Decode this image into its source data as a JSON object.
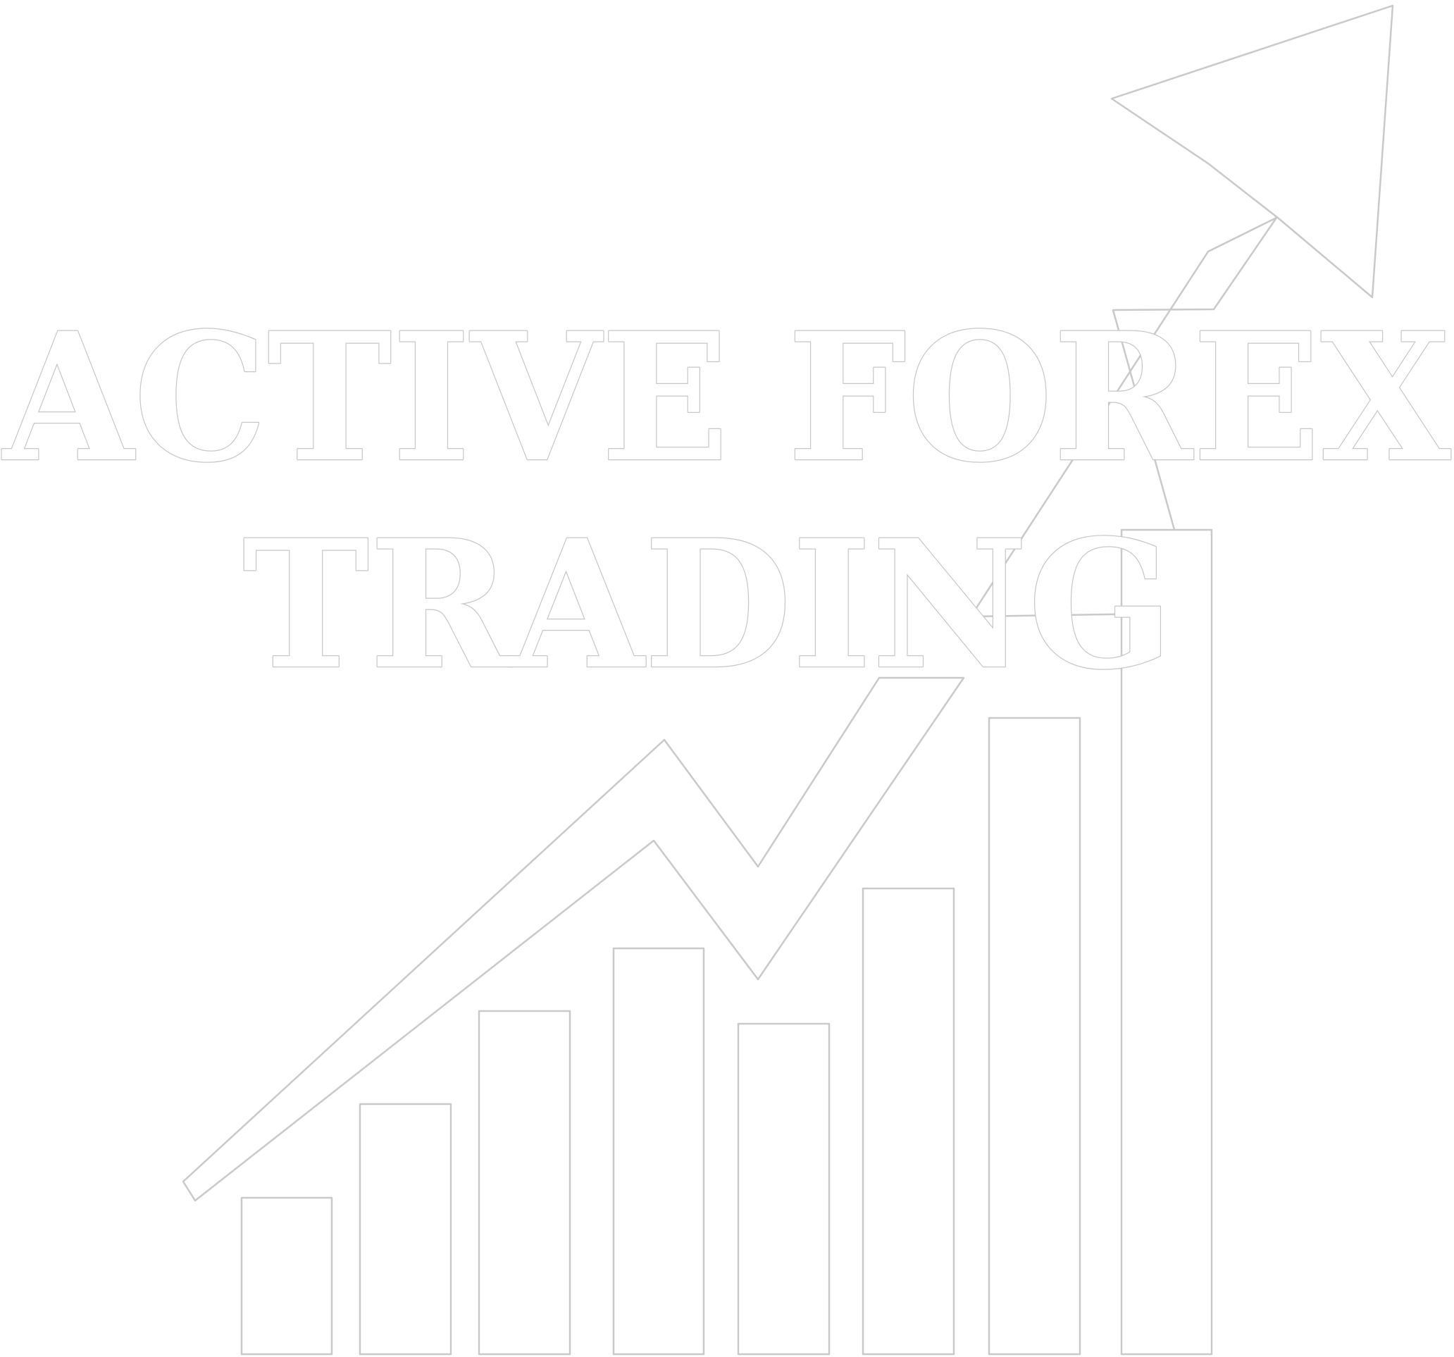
{
  "logo": {
    "line1": "ACTIVE FOREX",
    "line2": "TRADING",
    "bars": [
      {
        "name": "bar-1"
      },
      {
        "name": "bar-2"
      },
      {
        "name": "bar-3"
      },
      {
        "name": "bar-4"
      },
      {
        "name": "bar-5"
      },
      {
        "name": "bar-6"
      },
      {
        "name": "bar-7"
      },
      {
        "name": "bar-8"
      }
    ],
    "colors": {
      "background": "#ffffff",
      "outline": "#c9c9c9"
    },
    "icons": [
      "bar-chart-icon",
      "trend-arrow-icon"
    ]
  }
}
